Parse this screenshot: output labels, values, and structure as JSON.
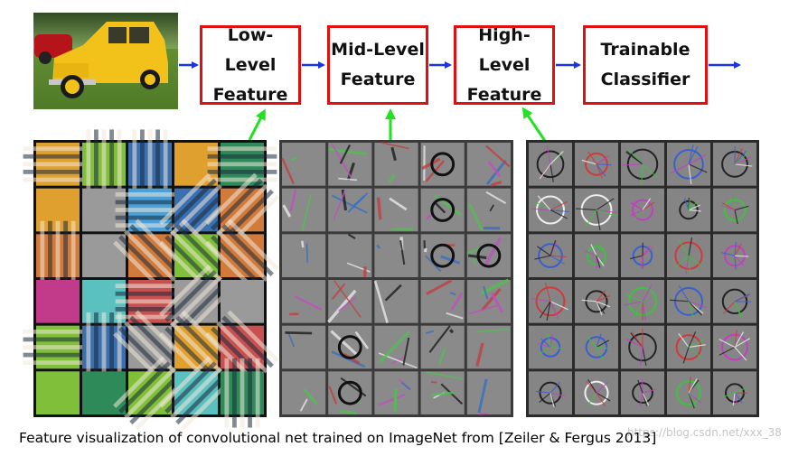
{
  "stages": [
    {
      "id": "low",
      "label": "Low-Level\nFeature"
    },
    {
      "id": "mid",
      "label": "Mid-Level\nFeature"
    },
    {
      "id": "high",
      "label": "High-Level\nFeature"
    },
    {
      "id": "classifier",
      "label": "Trainable\nClassifier"
    }
  ],
  "caption": "Feature visualization of convolutional net trained on ImageNet from [Zeiler & Fergus 2013]",
  "watermark": "https://blog.csdn.net/xxx_38",
  "colors": {
    "box_border": "#e01010",
    "flow_arrow": "#1a35e0",
    "link_arrow": "#22e022",
    "panel_bg": "#111111",
    "grid_bg": "#7e7e7e"
  },
  "panels": [
    {
      "id": "low-level-filters",
      "rows": 6,
      "cols": 5
    },
    {
      "id": "mid-level-features",
      "rows": 6,
      "cols": 5
    },
    {
      "id": "high-level-features",
      "rows": 6,
      "cols": 5
    }
  ]
}
